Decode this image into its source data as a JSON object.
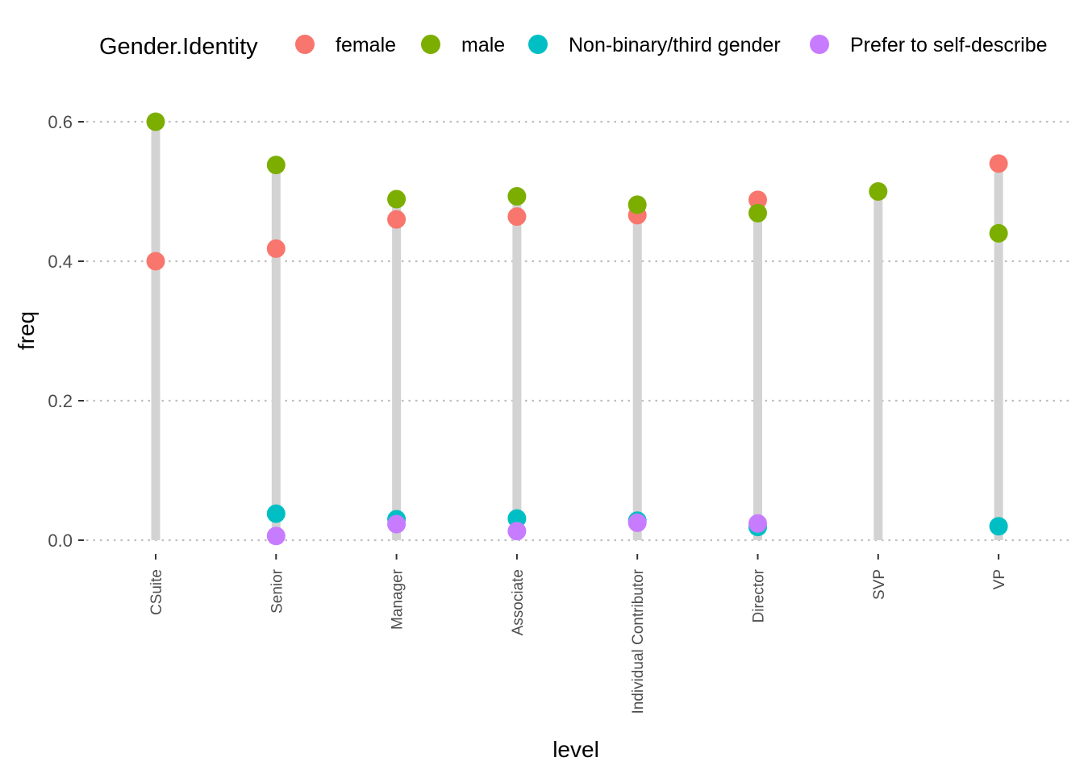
{
  "chart_data": {
    "type": "scatter",
    "subtype": "lollipop",
    "xlabel": "level",
    "ylabel": "freq",
    "ylim": [
      0,
      0.6
    ],
    "yticks": [
      0.0,
      0.2,
      0.4,
      0.6
    ],
    "ytick_labels": [
      "0.0",
      "0.2",
      "0.4",
      "0.6"
    ],
    "grid": "horizontal dotted",
    "legend_position": "top",
    "legend_title": "Gender.Identity",
    "categories": [
      "CSuite",
      "Senior",
      "Manager",
      "Associate",
      "Individual Contributor",
      "Director",
      "SVP",
      "VP"
    ],
    "stems": [
      0.6,
      0.538,
      0.489,
      0.493,
      0.481,
      0.488,
      0.5,
      0.54
    ],
    "series": [
      {
        "name": "female",
        "color": "#F8766D",
        "values": [
          0.4,
          0.418,
          0.46,
          0.464,
          0.466,
          0.488,
          null,
          0.54
        ]
      },
      {
        "name": "male",
        "color": "#7CAE00",
        "values": [
          0.6,
          0.538,
          0.489,
          0.493,
          0.481,
          0.469,
          0.5,
          0.44
        ]
      },
      {
        "name": "Non-binary/third gender",
        "color": "#00BFC4",
        "values": [
          null,
          0.038,
          0.03,
          0.031,
          0.028,
          0.019,
          null,
          0.02
        ]
      },
      {
        "name": "Prefer to self-describe",
        "color": "#C77CFF",
        "values": [
          null,
          0.006,
          0.023,
          0.013,
          0.025,
          0.024,
          null,
          null
        ]
      }
    ],
    "stem_color": "#d3d3d3",
    "grid_color": "#bebebe"
  }
}
